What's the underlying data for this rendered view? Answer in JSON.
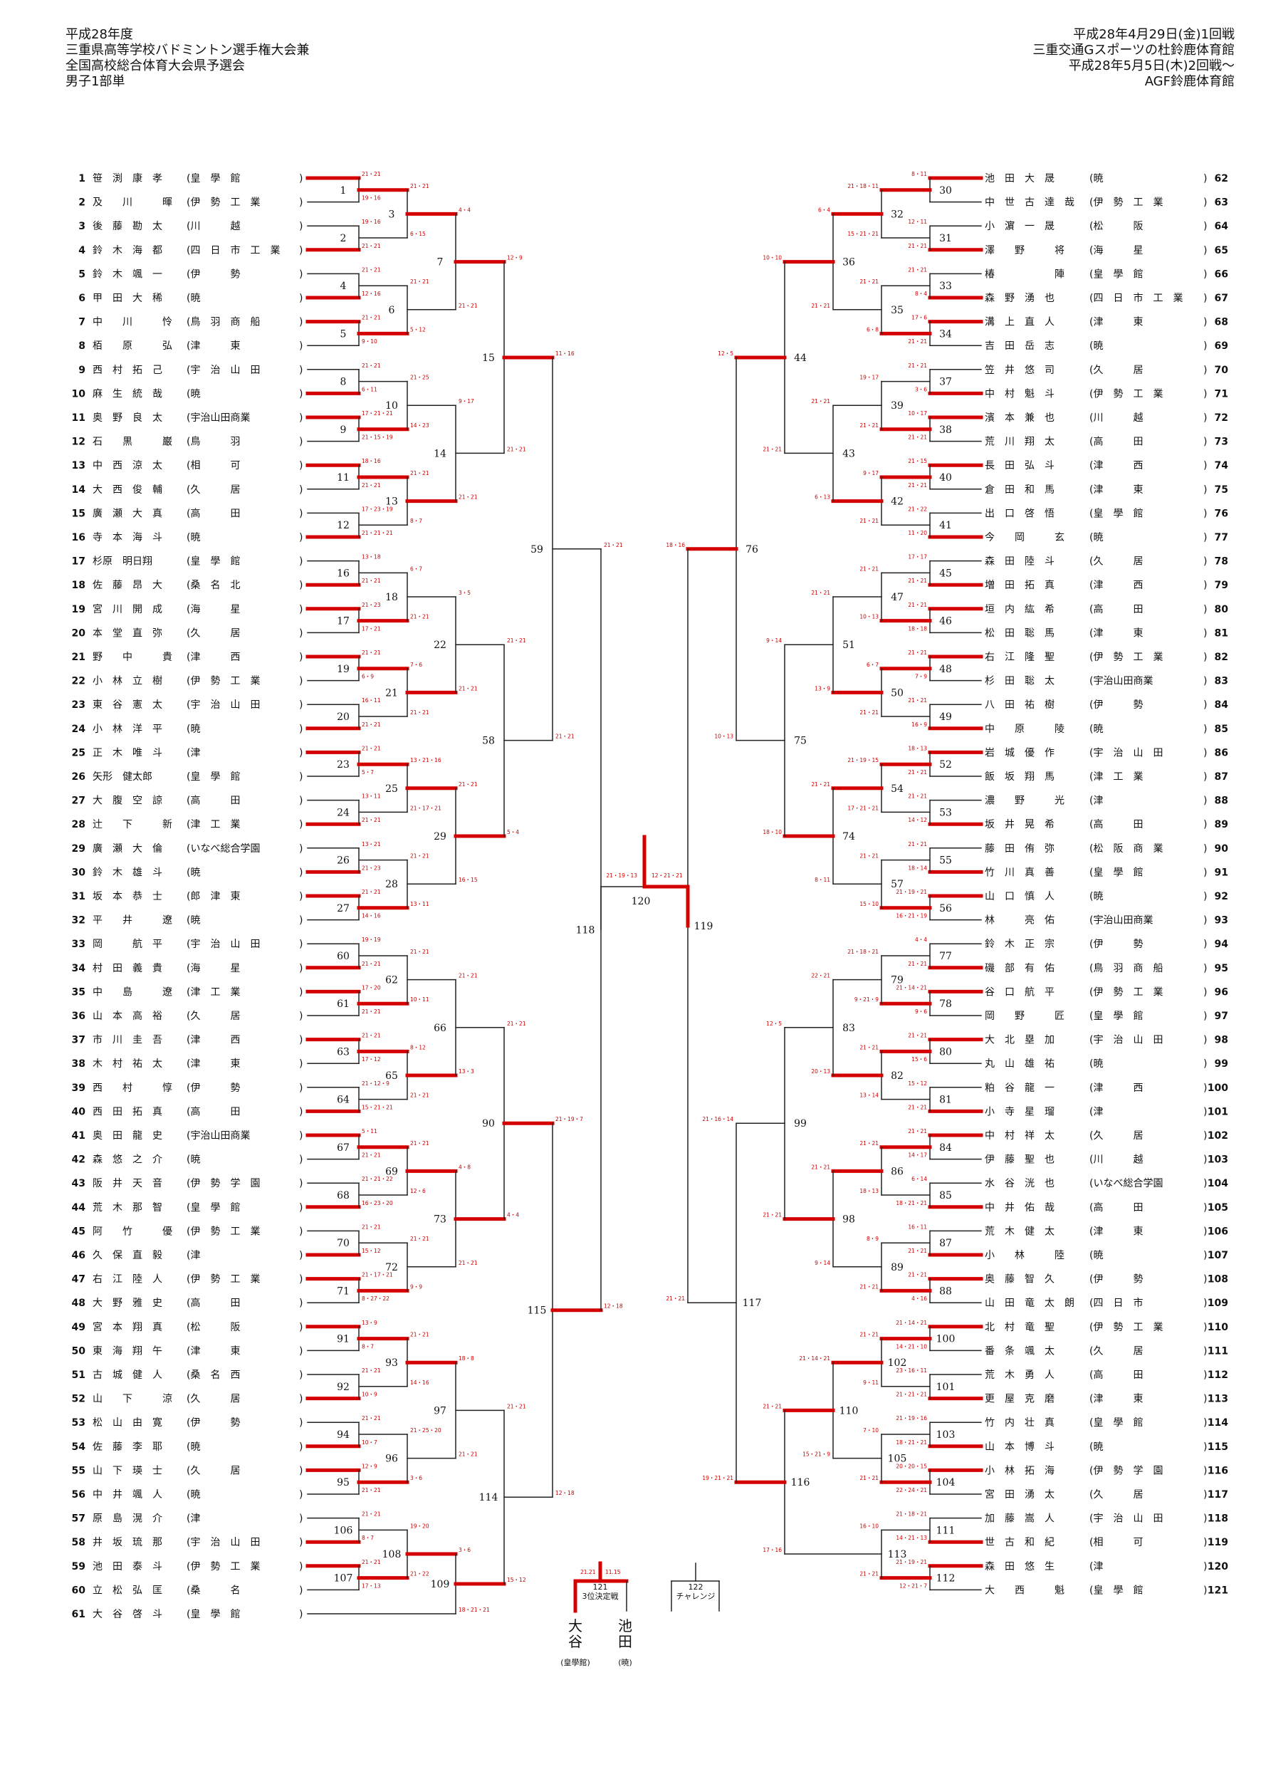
{
  "header": {
    "left": [
      "平成28年度",
      "三重県高等学校バドミントン選手権大会兼",
      "全国高校総合体育大会県予選会",
      "男子1部単"
    ],
    "right": [
      "平成28年4月29日(金)1回戦",
      "三重交通Gスポーツの杜鈴鹿体育館",
      "平成28年5月5日(木)2回戦～",
      "AGF鈴鹿体育館"
    ]
  },
  "left_players": [
    {
      "no": "1",
      "name": "笹　渕　康　孝",
      "school": "皇　學　館"
    },
    {
      "no": "2",
      "name": "及　　川　　　暉",
      "school": "伊　勢　工　業"
    },
    {
      "no": "3",
      "name": "後　藤　勘　太",
      "school": "川　　　越"
    },
    {
      "no": "4",
      "name": "鈴　木　海　都",
      "school": "四　日　市　工　業"
    },
    {
      "no": "5",
      "name": "鈴　木　颯　一",
      "school": "伊　　　勢"
    },
    {
      "no": "6",
      "name": "甲　田　大　稀",
      "school": "暁"
    },
    {
      "no": "7",
      "name": "中　　川　　　怜",
      "school": "鳥　羽　商　船"
    },
    {
      "no": "8",
      "name": "栢　　原　　　弘",
      "school": "津　　　東"
    },
    {
      "no": "9",
      "name": "西　村　拓　己",
      "school": "宇　治　山　田"
    },
    {
      "no": "10",
      "name": "麻　生　統　哉",
      "school": "暁"
    },
    {
      "no": "11",
      "name": "奥　野　良　太",
      "school": "宇治山田商業"
    },
    {
      "no": "12",
      "name": "石　　黒　　　巌",
      "school": "鳥　　　羽"
    },
    {
      "no": "13",
      "name": "中　西　涼　太",
      "school": "相　　　可"
    },
    {
      "no": "14",
      "name": "大　西　俊　輔",
      "school": "久　　　居"
    },
    {
      "no": "15",
      "name": "廣　瀬　大　真",
      "school": "高　　　田"
    },
    {
      "no": "16",
      "name": "寺　本　海　斗",
      "school": "暁"
    },
    {
      "no": "17",
      "name": "杉原　明日翔",
      "school": "皇　學　館"
    },
    {
      "no": "18",
      "name": "佐　藤　昂　大",
      "school": "桑　名　北"
    },
    {
      "no": "19",
      "name": "宮　川　開　成",
      "school": "海　　　星"
    },
    {
      "no": "20",
      "name": "本　堂　直　弥",
      "school": "久　　　居"
    },
    {
      "no": "21",
      "name": "野　　中　　　貴",
      "school": "津　　　西"
    },
    {
      "no": "22",
      "name": "小　林　立　樹",
      "school": "伊　勢　工　業"
    },
    {
      "no": "23",
      "name": "東　谷　憲　太",
      "school": "宇　治　山　田"
    },
    {
      "no": "24",
      "name": "小　林　洋　平",
      "school": "暁"
    },
    {
      "no": "25",
      "name": "正　木　唯　斗",
      "school": "津"
    },
    {
      "no": "26",
      "name": "矢形　健太郎",
      "school": "皇　學　館"
    },
    {
      "no": "27",
      "name": "大　腹　空　諒",
      "school": "高　　　田"
    },
    {
      "no": "28",
      "name": "辻　　下　　　新",
      "school": "津　工　業"
    },
    {
      "no": "29",
      "name": "廣　瀬　大　倫",
      "school": "いなべ総合学園"
    },
    {
      "no": "30",
      "name": "鈴　木　雄　斗",
      "school": "暁"
    },
    {
      "no": "31",
      "name": "坂　本　恭　士",
      "school": "郎　津　東"
    },
    {
      "no": "32",
      "name": "平　　井　　　遼",
      "school": "暁"
    },
    {
      "no": "33",
      "name": "岡　　　航　平",
      "school": "宇　治　山　田"
    },
    {
      "no": "34",
      "name": "村　田　義　貴",
      "school": "海　　　星"
    },
    {
      "no": "35",
      "name": "中　　島　　　遼",
      "school": "津　工　業"
    },
    {
      "no": "36",
      "name": "山　本　高　裕",
      "school": "久　　　居"
    },
    {
      "no": "37",
      "name": "市　川　圭　吾",
      "school": "津　　　西"
    },
    {
      "no": "38",
      "name": "木　村　祐　太",
      "school": "津　　　東"
    },
    {
      "no": "39",
      "name": "西　　村　　　惇",
      "school": "伊　　　勢"
    },
    {
      "no": "40",
      "name": "西　田　拓　真",
      "school": "高　　　田"
    },
    {
      "no": "41",
      "name": "奥　田　龍　史",
      "school": "宇治山田商業"
    },
    {
      "no": "42",
      "name": "森　悠　之　介",
      "school": "暁"
    },
    {
      "no": "43",
      "name": "阪　井　天　音",
      "school": "伊　勢　学　園"
    },
    {
      "no": "44",
      "name": "荒　木　那　智",
      "school": "皇　學　館"
    },
    {
      "no": "45",
      "name": "阿　　竹　　　優",
      "school": "伊　勢　工　業"
    },
    {
      "no": "46",
      "name": "久　保　直　毅",
      "school": "津"
    },
    {
      "no": "47",
      "name": "右　江　陸　人",
      "school": "伊　勢　工　業"
    },
    {
      "no": "48",
      "name": "大　野　雅　史",
      "school": "高　　　田"
    },
    {
      "no": "49",
      "name": "宮　本　翔　真",
      "school": "松　　　阪"
    },
    {
      "no": "50",
      "name": "東　海　翔　午",
      "school": "津　　　東"
    },
    {
      "no": "51",
      "name": "古　城　健　人",
      "school": "桑　名　西"
    },
    {
      "no": "52",
      "name": "山　　下　　　涼",
      "school": "久　　　居"
    },
    {
      "no": "53",
      "name": "松　山　由　寛",
      "school": "伊　　　勢"
    },
    {
      "no": "54",
      "name": "佐　藤　李　耶",
      "school": "暁"
    },
    {
      "no": "55",
      "name": "山　下　瑛　士",
      "school": "久　　　居"
    },
    {
      "no": "56",
      "name": "中　井　颯　人",
      "school": "暁"
    },
    {
      "no": "57",
      "name": "原　島　滉　介",
      "school": "津"
    },
    {
      "no": "58",
      "name": "井　坂　琉　那",
      "school": "宇　治　山　田"
    },
    {
      "no": "59",
      "name": "池　田　泰　斗",
      "school": "伊　勢　工　業"
    },
    {
      "no": "60",
      "name": "立　松　弘　匡",
      "school": "桑　　　名"
    },
    {
      "no": "61",
      "name": "大　谷　啓　斗",
      "school": "皇　學　館"
    }
  ],
  "right_players": [
    {
      "no": "62",
      "name": "池　田　大　晟",
      "school": "暁"
    },
    {
      "no": "63",
      "name": "中　世　古　達　哉",
      "school": "伊　勢　工　業"
    },
    {
      "no": "64",
      "name": "小　濵　一　晟",
      "school": "松　　　阪"
    },
    {
      "no": "65",
      "name": "澤　　野　　　将",
      "school": "海　　　星"
    },
    {
      "no": "66",
      "name": "椿　　　　　　陣",
      "school": "皇　學　館"
    },
    {
      "no": "67",
      "name": "森　野　湧　也",
      "school": "四　日　市　工　業"
    },
    {
      "no": "68",
      "name": "溝　上　直　人",
      "school": "津　　　東"
    },
    {
      "no": "69",
      "name": "吉　田　岳　志",
      "school": "暁"
    },
    {
      "no": "70",
      "name": "笠　井　悠　司",
      "school": "久　　　居"
    },
    {
      "no": "71",
      "name": "中　村　魁　斗",
      "school": "伊　勢　工　業"
    },
    {
      "no": "72",
      "name": "濱　本　兼　也",
      "school": "川　　　越"
    },
    {
      "no": "73",
      "name": "荒　川　翔　太",
      "school": "高　　　田"
    },
    {
      "no": "74",
      "name": "長　田　弘　斗",
      "school": "津　　　西"
    },
    {
      "no": "75",
      "name": "倉　田　和　馬",
      "school": "津　　　東"
    },
    {
      "no": "76",
      "name": "出　口　啓　悟",
      "school": "皇　學　館"
    },
    {
      "no": "77",
      "name": "今　　岡　　　玄",
      "school": "暁"
    },
    {
      "no": "78",
      "name": "森　田　陸　斗",
      "school": "久　　　居"
    },
    {
      "no": "79",
      "name": "増　田　拓　真",
      "school": "津　　　西"
    },
    {
      "no": "80",
      "name": "垣　内　紘　希",
      "school": "高　　　田"
    },
    {
      "no": "81",
      "name": "松　田　聡　馬",
      "school": "津　　　東"
    },
    {
      "no": "82",
      "name": "右　江　隆　聖",
      "school": "伊　勢　工　業"
    },
    {
      "no": "83",
      "name": "杉　田　聡　太",
      "school": "宇治山田商業"
    },
    {
      "no": "84",
      "name": "八　田　祐　樹",
      "school": "伊　　　勢"
    },
    {
      "no": "85",
      "name": "中　　原　　　陵",
      "school": "暁"
    },
    {
      "no": "86",
      "name": "岩　城　優　作",
      "school": "宇　治　山　田"
    },
    {
      "no": "87",
      "name": "飯　坂　翔　馬",
      "school": "津　工　業"
    },
    {
      "no": "88",
      "name": "濃　　野　　　光",
      "school": "津"
    },
    {
      "no": "89",
      "name": "坂　井　晃　希",
      "school": "高　　　田"
    },
    {
      "no": "90",
      "name": "藤　田　侑　弥",
      "school": "松　阪　商　業"
    },
    {
      "no": "91",
      "name": "竹　川　真　善",
      "school": "皇　學　館"
    },
    {
      "no": "92",
      "name": "山　口　慎　人",
      "school": "暁"
    },
    {
      "no": "93",
      "name": "林　　　亮　佑",
      "school": "宇治山田商業"
    },
    {
      "no": "94",
      "name": "鈴　木　正　宗",
      "school": "伊　　　勢"
    },
    {
      "no": "95",
      "name": "磯　部　有　佑",
      "school": "鳥　羽　商　船"
    },
    {
      "no": "96",
      "name": "谷　口　航　平",
      "school": "伊　勢　工　業"
    },
    {
      "no": "97",
      "name": "岡　　野　　　匠",
      "school": "皇　學　館"
    },
    {
      "no": "98",
      "name": "大　北　塁　加",
      "school": "宇　治　山　田"
    },
    {
      "no": "99",
      "name": "丸　山　雄　祐",
      "school": "暁"
    },
    {
      "no": "100",
      "name": "粕　谷　龍　一",
      "school": "津　　　西"
    },
    {
      "no": "101",
      "name": "小　寺　星　瑠",
      "school": "津"
    },
    {
      "no": "102",
      "name": "中　村　祥　太",
      "school": "久　　　居"
    },
    {
      "no": "103",
      "name": "伊　藤　聖　也",
      "school": "川　　　越"
    },
    {
      "no": "104",
      "name": "水　谷　洸　也",
      "school": "いなべ総合学園"
    },
    {
      "no": "105",
      "name": "中　井　佑　哉",
      "school": "高　　　田"
    },
    {
      "no": "106",
      "name": "荒　木　健　太",
      "school": "津　　　東"
    },
    {
      "no": "107",
      "name": "小　　林　　　陸",
      "school": "暁"
    },
    {
      "no": "108",
      "name": "奥　藤　智　久",
      "school": "伊　　　勢"
    },
    {
      "no": "109",
      "name": "山　田　竜　太　朗",
      "school": "四　日　市"
    },
    {
      "no": "110",
      "name": "北　村　竜　聖",
      "school": "伊　勢　工　業"
    },
    {
      "no": "111",
      "name": "番　条　颯　太",
      "school": "久　　　居"
    },
    {
      "no": "112",
      "name": "荒　木　勇　人",
      "school": "高　　　田"
    },
    {
      "no": "113",
      "name": "更　屋　克　磨",
      "school": "津　　　東"
    },
    {
      "no": "114",
      "name": "竹　内　壮　真",
      "school": "皇　學　館"
    },
    {
      "no": "115",
      "name": "山　本　博　斗",
      "school": "暁"
    },
    {
      "no": "116",
      "name": "小　林　拓　海",
      "school": "伊　勢　学　園"
    },
    {
      "no": "117",
      "name": "宮　田　湧　太",
      "school": "久　　　居"
    },
    {
      "no": "118",
      "name": "加　藤　嵩　人",
      "school": "宇　治　山　田"
    },
    {
      "no": "119",
      "name": "世　古　和　紀",
      "school": "相　　　可"
    },
    {
      "no": "120",
      "name": "森　田　悠　生",
      "school": "津"
    },
    {
      "no": "121",
      "name": "大　　西　　　魁",
      "school": "皇　學　館"
    }
  ],
  "left_matches": [
    {
      "id": "1",
      "s1": "21・21",
      "s2": "19・16"
    },
    {
      "id": "2",
      "s1": "19・16",
      "s2": "21・21"
    },
    {
      "id": "3",
      "s1": "21・21",
      "s2": "6・15"
    },
    {
      "id": "4",
      "s1": "21・21",
      "s2": "12・16"
    },
    {
      "id": "5",
      "s1": "21・21",
      "s2": "9・10"
    },
    {
      "id": "6",
      "s1": "21・21",
      "s2": "5・12"
    },
    {
      "id": "7",
      "s1": "4・4",
      "s2": "21・21"
    },
    {
      "id": "8",
      "s1": "21・21",
      "s2": "6・11"
    },
    {
      "id": "9",
      "s1": "17・21・21",
      "s2": "21・15・19"
    },
    {
      "id": "10",
      "s1": "21・25",
      "s2": "14・23"
    },
    {
      "id": "11",
      "s1": "18・16",
      "s2": "21・21"
    },
    {
      "id": "12",
      "s1": "17・23・19",
      "s2": "21・21・21"
    },
    {
      "id": "13",
      "s1": "21・21",
      "s2": "8・7"
    },
    {
      "id": "14",
      "s1": "9・17",
      "s2": "21・21"
    },
    {
      "id": "15",
      "s1": "12・9",
      "s2": "21・21"
    },
    {
      "id": "16",
      "s1": "13・18",
      "s2": "21・21"
    },
    {
      "id": "17",
      "s1": "21・23",
      "s2": "17・21"
    },
    {
      "id": "18",
      "s1": "6・7",
      "s2": "21・21"
    },
    {
      "id": "19",
      "s1": "21・21",
      "s2": "6・9"
    },
    {
      "id": "20",
      "s1": "16・11",
      "s2": "21・21"
    },
    {
      "id": "21",
      "s1": "7・6",
      "s2": "21・21"
    },
    {
      "id": "22",
      "s1": "3・5",
      "s2": "21・21"
    },
    {
      "id": "23",
      "s1": "21・21",
      "s2": "5・7"
    },
    {
      "id": "24",
      "s1": "13・11",
      "s2": "21・21"
    },
    {
      "id": "25",
      "s1": "13・21・16",
      "s2": "21・17・21"
    },
    {
      "id": "26",
      "s1": "13・21",
      "s2": "21・23"
    },
    {
      "id": "27",
      "s1": "21・21",
      "s2": "14・16"
    },
    {
      "id": "28",
      "s1": "21・21",
      "s2": "13・11"
    },
    {
      "id": "29",
      "s1": "21・21",
      "s2": "16・15"
    },
    {
      "id": "58",
      "s1": "21・21",
      "s2": "5・4"
    },
    {
      "id": "59",
      "s1": "11・16",
      "s2": "21・21"
    },
    {
      "id": "60",
      "s1": "19・19",
      "s2": "21・21"
    },
    {
      "id": "61",
      "s1": "17・20",
      "s2": "21・21"
    },
    {
      "id": "62",
      "s1": "21・21",
      "s2": "10・11"
    },
    {
      "id": "63",
      "s1": "21・21",
      "s2": "17・12"
    },
    {
      "id": "64",
      "s1": "21・12・9",
      "s2": "15・21・21"
    },
    {
      "id": "65",
      "s1": "8・12",
      "s2": "21・21"
    },
    {
      "id": "66",
      "s1": "21・21",
      "s2": "13・3"
    },
    {
      "id": "67",
      "s1": "5・11",
      "s2": "21・21"
    },
    {
      "id": "68",
      "s1": "21・21・22",
      "s2": "16・23・20"
    },
    {
      "id": "69",
      "s1": "21・21",
      "s2": "12・6"
    },
    {
      "id": "70",
      "s1": "21・21",
      "s2": "15・12"
    },
    {
      "id": "71",
      "s1": "21・17・21",
      "s2": "8・27・22"
    },
    {
      "id": "72",
      "s1": "21・21",
      "s2": "9・9"
    },
    {
      "id": "73",
      "s1": "4・8",
      "s2": "21・21"
    },
    {
      "id": "90",
      "s1": "21・21",
      "s2": "4・4"
    },
    {
      "id": "91",
      "s1": "13・9",
      "s2": "8・7"
    },
    {
      "id": "92",
      "s1": "21・21",
      "s2": "10・9"
    },
    {
      "id": "93",
      "s1": "21・21",
      "s2": "14・16"
    },
    {
      "id": "94",
      "s1": "21・21",
      "s2": "10・7"
    },
    {
      "id": "95",
      "s1": "12・9",
      "s2": "21・21"
    },
    {
      "id": "96",
      "s1": "21・25・20",
      "s2": "3・6"
    },
    {
      "id": "97",
      "s1": "18・8",
      "s2": "21・21"
    },
    {
      "id": "106",
      "s1": "21・21",
      "s2": "8・7"
    },
    {
      "id": "107",
      "s1": "21・21",
      "s2": "17・13"
    },
    {
      "id": "108",
      "s1": "19・20",
      "s2": "21・22"
    },
    {
      "id": "109",
      "s1": "3・6",
      "s2": "18・21・21"
    },
    {
      "id": "114",
      "s1": "21・21",
      "s2": "15・12"
    },
    {
      "id": "115",
      "s1": "21・19・7",
      "s2": "12・18"
    },
    {
      "id": "118",
      "s1": "21・21",
      "s2": "12・18"
    }
  ],
  "right_matches": [
    {
      "id": "30",
      "s1": "8・11",
      "s2": ""
    },
    {
      "id": "31",
      "s1": "12・11",
      "s2": "21・21"
    },
    {
      "id": "32",
      "s1": "21・18・11",
      "s2": "15・21・21"
    },
    {
      "id": "33",
      "s1": "21・21",
      "s2": "8・4"
    },
    {
      "id": "34",
      "s1": "17・6",
      "s2": "21・21"
    },
    {
      "id": "35",
      "s1": "21・21",
      "s2": "6・8"
    },
    {
      "id": "36",
      "s1": "6・4",
      "s2": "21・21"
    },
    {
      "id": "37",
      "s1": "21・21",
      "s2": "3・6"
    },
    {
      "id": "38",
      "s1": "10・17",
      "s2": "21・21"
    },
    {
      "id": "39",
      "s1": "19・17",
      "s2": "21・21"
    },
    {
      "id": "40",
      "s1": "21・15",
      "s2": "21・21"
    },
    {
      "id": "41",
      "s1": "21・22",
      "s2": "11・20"
    },
    {
      "id": "42",
      "s1": "9・17",
      "s2": "21・21"
    },
    {
      "id": "43",
      "s1": "21・21",
      "s2": "6・13"
    },
    {
      "id": "44",
      "s1": "10・10",
      "s2": "21・21"
    },
    {
      "id": "45",
      "s1": "17・17",
      "s2": "21・21"
    },
    {
      "id": "46",
      "s1": "21・21",
      "s2": "18・18"
    },
    {
      "id": "47",
      "s1": "21・21",
      "s2": "10・13"
    },
    {
      "id": "48",
      "s1": "21・21",
      "s2": "7・9"
    },
    {
      "id": "49",
      "s1": "21・21",
      "s2": "16・9"
    },
    {
      "id": "50",
      "s1": "6・7",
      "s2": "21・21"
    },
    {
      "id": "51",
      "s1": "21・21",
      "s2": "13・9"
    },
    {
      "id": "52",
      "s1": "18・13",
      "s2": "21・21"
    },
    {
      "id": "53",
      "s1": "21・21",
      "s2": "14・12"
    },
    {
      "id": "54",
      "s1": "21・19・15",
      "s2": "17・21・21"
    },
    {
      "id": "55",
      "s1": "21・21",
      "s2": "18・14"
    },
    {
      "id": "56",
      "s1": "21・19・21",
      "s2": "16・21・19"
    },
    {
      "id": "57",
      "s1": "21・21",
      "s2": "15・10"
    },
    {
      "id": "74",
      "s1": "21・21",
      "s2": "8・11"
    },
    {
      "id": "75",
      "s1": "9・14",
      "s2": "18・10"
    },
    {
      "id": "76",
      "s1": "12・5",
      "s2": "10・13"
    },
    {
      "id": "77",
      "s1": "4・4",
      "s2": "21・21"
    },
    {
      "id": "78",
      "s1": "21・14・21",
      "s2": "9・6"
    },
    {
      "id": "79",
      "s1": "21・18・21",
      "s2": "9・21・9"
    },
    {
      "id": "80",
      "s1": "21・21",
      "s2": "15・6"
    },
    {
      "id": "81",
      "s1": "15・12",
      "s2": "21・21"
    },
    {
      "id": "82",
      "s1": "21・21",
      "s2": "13・14"
    },
    {
      "id": "83",
      "s1": "22・21",
      "s2": "20・13"
    },
    {
      "id": "84",
      "s1": "21・21",
      "s2": "14・17"
    },
    {
      "id": "85",
      "s1": "6・14",
      "s2": "18・21・21"
    },
    {
      "id": "86",
      "s1": "21・21",
      "s2": "18・13"
    },
    {
      "id": "87",
      "s1": "16・11",
      "s2": "21・21"
    },
    {
      "id": "88",
      "s1": "21・21",
      "s2": "4・16"
    },
    {
      "id": "89",
      "s1": "8・9",
      "s2": "21・21"
    },
    {
      "id": "98",
      "s1": "21・21",
      "s2": "9・14"
    },
    {
      "id": "99",
      "s1": "12・5",
      "s2": "21・21"
    },
    {
      "id": "100",
      "s1": "21・14・21",
      "s2": "14・21・10"
    },
    {
      "id": "101",
      "s1": "23・16・11",
      "s2": "21・21・21"
    },
    {
      "id": "102",
      "s1": "21・21",
      "s2": "9・11"
    },
    {
      "id": "103",
      "s1": "21・19・16",
      "s2": "18・21・21"
    },
    {
      "id": "104",
      "s1": "20・20・15",
      "s2": "22・24・21"
    },
    {
      "id": "105",
      "s1": "7・10",
      "s2": "21・21"
    },
    {
      "id": "110",
      "s1": "21・14・21",
      "s2": "15・21・9"
    },
    {
      "id": "111",
      "s1": "21・18・21",
      "s2": "14・21・13"
    },
    {
      "id": "112",
      "s1": "21・19・21",
      "s2": "12・21・7"
    },
    {
      "id": "113",
      "s1": "16・10",
      "s2": "21・21"
    },
    {
      "id": "116",
      "s1": "21・21",
      "s2": "17・16"
    },
    {
      "id": "117",
      "s1": "21・16・14",
      "s2": "19・21・21"
    },
    {
      "id": "119",
      "s1": "18・16",
      "s2": "21・21"
    }
  ],
  "final": {
    "id": "120",
    "score": "21・19・13",
    "score2": "12・21・21"
  },
  "third_place": {
    "id": "121",
    "label": "3位決定戦",
    "score_left": "21.21",
    "score_right": "11.15",
    "left_name": "大谷",
    "left_school": "(皇學館)",
    "right_name": "池田",
    "right_school": "(暁)"
  },
  "challenge": {
    "id": "122",
    "label": "チャレンジ"
  }
}
